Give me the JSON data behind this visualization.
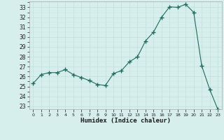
{
  "x": [
    0,
    1,
    2,
    3,
    4,
    5,
    6,
    7,
    8,
    9,
    10,
    11,
    12,
    13,
    14,
    15,
    16,
    17,
    18,
    19,
    20,
    21,
    22,
    23
  ],
  "y": [
    25.3,
    26.2,
    26.4,
    26.4,
    26.7,
    26.2,
    25.9,
    25.6,
    25.2,
    25.1,
    26.3,
    26.6,
    27.5,
    28.0,
    29.6,
    30.5,
    32.0,
    33.05,
    33.0,
    33.3,
    32.5,
    27.1,
    24.7,
    22.7
  ],
  "xlabel": "Humidex (Indice chaleur)",
  "ylim_min": 22.7,
  "ylim_max": 33.6,
  "yticks": [
    23,
    24,
    25,
    26,
    27,
    28,
    29,
    30,
    31,
    32,
    33
  ],
  "xticks": [
    0,
    1,
    2,
    3,
    4,
    5,
    6,
    7,
    8,
    9,
    10,
    11,
    12,
    13,
    14,
    15,
    16,
    17,
    18,
    19,
    20,
    21,
    22,
    23
  ],
  "line_color": "#1e6b5e",
  "bg_color": "#d6efec",
  "grid_major_color": "#c2e0dc",
  "grid_minor_color": "#d0e8e4"
}
